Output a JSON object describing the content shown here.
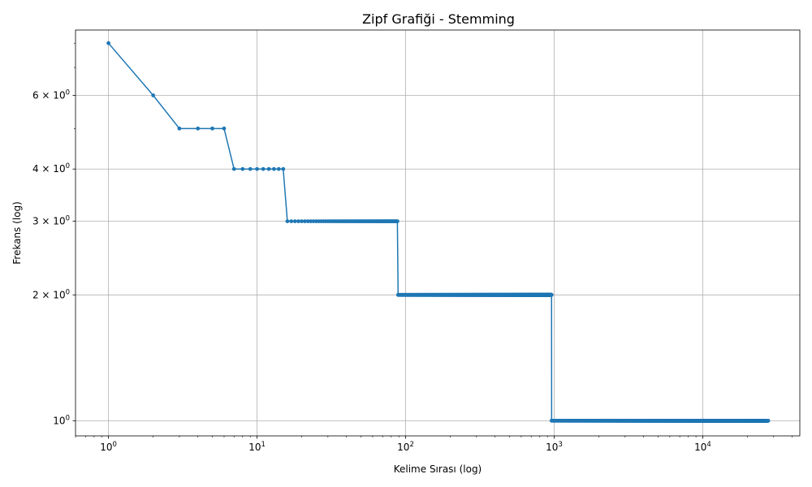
{
  "chart_data": {
    "type": "line",
    "title": "Zipf Grafiği - Stemming",
    "xlabel": "Kelime Sırası (log)",
    "ylabel": "Frekans (log)",
    "xscale": "log",
    "yscale": "log",
    "xlim": [
      0.6,
      45000
    ],
    "ylim": [
      0.92,
      8.6
    ],
    "grid": true,
    "x_ticks": [
      {
        "value": 1,
        "mantissa": "10",
        "exp": "0"
      },
      {
        "value": 10,
        "mantissa": "10",
        "exp": "1"
      },
      {
        "value": 100,
        "mantissa": "10",
        "exp": "2"
      },
      {
        "value": 1000,
        "mantissa": "10",
        "exp": "3"
      },
      {
        "value": 10000,
        "mantissa": "10",
        "exp": "4"
      }
    ],
    "y_ticks": [
      {
        "value": 1,
        "mantissa": "10",
        "exp": "0"
      },
      {
        "value": 2,
        "mantissa": "2 × 10",
        "exp": "0"
      },
      {
        "value": 3,
        "mantissa": "3 × 10",
        "exp": "0"
      },
      {
        "value": 4,
        "mantissa": "4 × 10",
        "exp": "0"
      },
      {
        "value": 6,
        "mantissa": "6 × 10",
        "exp": "0"
      }
    ],
    "series_color": "#1f77b4",
    "points": [
      [
        1,
        8
      ],
      [
        2,
        6
      ],
      [
        3,
        5
      ],
      [
        4,
        5
      ],
      [
        5,
        5
      ],
      [
        6,
        5
      ],
      [
        7,
        4
      ],
      [
        8,
        4
      ],
      [
        9,
        4
      ],
      [
        10,
        4
      ],
      [
        11,
        4
      ],
      [
        12,
        4
      ],
      [
        13,
        4
      ],
      [
        14,
        4
      ],
      [
        15,
        4
      ]
    ],
    "runs": [
      {
        "x_start": 16,
        "x_end": 88,
        "value": 3
      },
      {
        "x_start": 89,
        "x_end": 960,
        "value": 2
      },
      {
        "x_start": 961,
        "x_end": 27500,
        "value": 1
      }
    ]
  }
}
